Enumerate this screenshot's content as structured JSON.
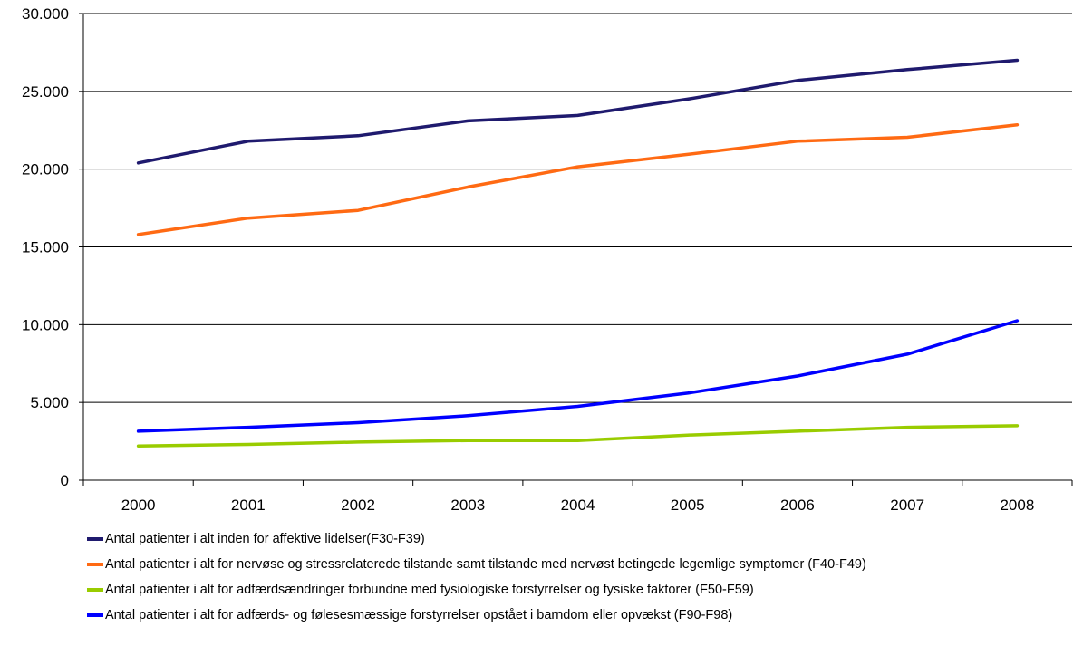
{
  "chart_data": {
    "type": "line",
    "title": "",
    "xlabel": "",
    "ylabel": "",
    "x": [
      "2000",
      "2001",
      "2002",
      "2003",
      "2004",
      "2005",
      "2006",
      "2007",
      "2008"
    ],
    "ylim": [
      0,
      30000
    ],
    "yticks": [
      0,
      5000,
      10000,
      15000,
      20000,
      25000,
      30000
    ],
    "ytick_labels": [
      "0",
      "5.000",
      "10.000",
      "15.000",
      "20.000",
      "25.000",
      "30.000"
    ],
    "grid": "horizontal",
    "legend_position": "bottom",
    "series": [
      {
        "name": "Antal patienter i alt inden for affektive lidelser(F30-F39)",
        "color": "#1f1a6e",
        "values": [
          20400,
          21800,
          22150,
          23100,
          23450,
          24500,
          25700,
          26400,
          27000
        ]
      },
      {
        "name": "Antal patienter i alt for nervøse og stressrelaterede tilstande samt tilstande med nervøst betingede legemlige symptomer (F40-F49)",
        "color": "#ff6a13",
        "values": [
          15800,
          16850,
          17350,
          18850,
          20150,
          20950,
          21800,
          22050,
          22850
        ]
      },
      {
        "name": "Antal patienter i alt for adfærdsændringer forbundne med fysiologiske forstyrrelser og fysiske faktorer (F50-F59)",
        "color": "#99cc00",
        "values": [
          2200,
          2300,
          2450,
          2550,
          2550,
          2900,
          3150,
          3400,
          3500
        ]
      },
      {
        "name": "Antal patienter i alt for adfærds- og følesesmæssige forstyrrelser opstået i barndom eller opvækst (F90-F98)",
        "color": "#0000ff",
        "values": [
          3150,
          3400,
          3700,
          4150,
          4750,
          5600,
          6700,
          8100,
          10250
        ]
      }
    ]
  }
}
